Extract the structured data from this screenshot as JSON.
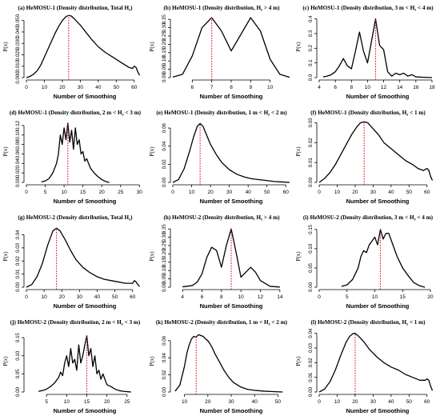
{
  "colors": {
    "curve": "#000000",
    "marker": "#e0141e"
  },
  "chart_data": [
    {
      "type": "line",
      "title": "(a) HeMOSU-1 (Density distribution, Total H",
      "title_sub": "s",
      "title_end": ")",
      "xlabel": "Number of Smoothing",
      "ylabel": "P(x)",
      "xlim": [
        0,
        65
      ],
      "ylim": [
        0,
        0.054
      ],
      "xticks": [
        0,
        10,
        20,
        30,
        40,
        50,
        60
      ],
      "yticks": [
        0.0,
        0.01,
        0.02,
        0.03,
        0.04,
        0.05
      ],
      "ytick_labels": [
        "0.000",
        "0.010",
        "0.020",
        "0.030",
        "0.040",
        "0.050"
      ],
      "marker_x": 23.5,
      "x": [
        0,
        2,
        4,
        6,
        8,
        10,
        12,
        14,
        16,
        18,
        20,
        22,
        23.5,
        25,
        27,
        30,
        33,
        36,
        40,
        44,
        48,
        52,
        55,
        57,
        59,
        60,
        61,
        62,
        63
      ],
      "y": [
        0,
        0.001,
        0.003,
        0.006,
        0.011,
        0.018,
        0.025,
        0.032,
        0.039,
        0.045,
        0.05,
        0.0535,
        0.0545,
        0.054,
        0.051,
        0.046,
        0.04,
        0.034,
        0.027,
        0.022,
        0.018,
        0.014,
        0.011,
        0.009,
        0.008,
        0.01,
        0.009,
        0.005,
        0.002
      ]
    },
    {
      "type": "line",
      "title": "(b) HeMOSU-1 (Density distribution, H",
      "title_sub": "s",
      "title_end": " > 4 m)",
      "xlabel": "Number of Smoothing",
      "ylabel": "P(x)",
      "xlim": [
        5,
        11
      ],
      "ylim": [
        0,
        0.37
      ],
      "xticks": [
        6,
        7,
        8,
        9,
        10
      ],
      "yticks": [
        0.0,
        0.05,
        0.1,
        0.15,
        0.2,
        0.25,
        0.3,
        0.35
      ],
      "ytick_labels": [
        "0.00",
        "0.05",
        "0.10",
        "0.15",
        "0.20",
        "0.25",
        "0.30",
        "0.35"
      ],
      "marker_x": 7,
      "x": [
        5,
        5.5,
        6,
        6.5,
        7,
        7.5,
        8,
        8.5,
        9,
        9.5,
        10,
        10.5,
        11
      ],
      "y": [
        0.003,
        0.02,
        0.13,
        0.3,
        0.36,
        0.28,
        0.16,
        0.26,
        0.36,
        0.28,
        0.11,
        0.02,
        0.002
      ]
    },
    {
      "type": "line",
      "title": "(c) HeMOSU-1 (Density distribution, 3 m < H",
      "title_sub": "s",
      "title_end": " < 4 m)",
      "xlabel": "Number of Smoothing",
      "ylabel": "P(x)",
      "xlim": [
        4,
        18.5
      ],
      "ylim": [
        0,
        0.42
      ],
      "xticks": [
        4,
        6,
        8,
        10,
        12,
        14,
        16,
        18
      ],
      "yticks": [
        0.0,
        0.1,
        0.2,
        0.3,
        0.4
      ],
      "ytick_labels": [
        "0.0",
        "0.1",
        "0.2",
        "0.3",
        "0.4"
      ],
      "marker_x": 11,
      "x": [
        4.5,
        5,
        5.5,
        6,
        6.5,
        7,
        7.5,
        8,
        8.5,
        9,
        9.5,
        10,
        10.5,
        11,
        11.5,
        12,
        12.5,
        13,
        13.5,
        14,
        14.5,
        15,
        15.5,
        16,
        17,
        18
      ],
      "y": [
        0.005,
        0.01,
        0.02,
        0.04,
        0.08,
        0.13,
        0.08,
        0.06,
        0.18,
        0.31,
        0.18,
        0.1,
        0.25,
        0.4,
        0.22,
        0.19,
        0.04,
        0.01,
        0.03,
        0.02,
        0.03,
        0.01,
        0.02,
        0.005,
        0.002,
        0.0
      ]
    },
    {
      "type": "line",
      "title": "(d) HeMOSU-1 (Density distribution, 2 m < H",
      "title_sub": "s",
      "title_end": " < 3 m)",
      "xlabel": "Number of Smoothing",
      "ylabel": "P(x)",
      "xlim": [
        0,
        31
      ],
      "ylim": [
        0,
        0.13
      ],
      "xticks": [
        0,
        5,
        10,
        15,
        20,
        25,
        30
      ],
      "yticks": [
        0.0,
        0.02,
        0.04,
        0.06,
        0.08,
        0.1,
        0.12
      ],
      "ytick_labels": [
        "0.00",
        "0.02",
        "0.04",
        "0.06",
        "0.08",
        "0.10",
        "0.12"
      ],
      "marker_x": 11,
      "x": [
        4,
        5,
        6,
        7,
        8,
        8.5,
        9,
        9.5,
        10,
        10.5,
        11,
        11.5,
        12,
        12.5,
        13,
        13.5,
        14,
        14.5,
        15,
        15.5,
        16,
        17,
        18,
        19,
        20,
        21,
        22
      ],
      "y": [
        0.001,
        0.003,
        0.008,
        0.02,
        0.04,
        0.06,
        0.1,
        0.08,
        0.115,
        0.09,
        0.125,
        0.085,
        0.11,
        0.07,
        0.115,
        0.08,
        0.09,
        0.06,
        0.065,
        0.045,
        0.05,
        0.03,
        0.02,
        0.012,
        0.006,
        0.002,
        0.0
      ]
    },
    {
      "type": "line",
      "title": "(e) HeMOSU-1 (Density distribution, 1 m < H",
      "title_sub": "s",
      "title_end": " < 2 m)",
      "xlabel": "Number of Smoothing",
      "ylabel": "P(x)",
      "xlim": [
        0,
        62
      ],
      "ylim": [
        0,
        0.068
      ],
      "xticks": [
        0,
        10,
        20,
        30,
        40,
        50,
        60
      ],
      "yticks": [
        0.0,
        0.02,
        0.04,
        0.06
      ],
      "ytick_labels": [
        "0.00",
        "0.02",
        "0.04",
        "0.06"
      ],
      "marker_x": 14.5,
      "x": [
        0,
        3,
        6,
        9,
        11,
        13,
        14.5,
        16,
        18,
        20,
        23,
        26,
        30,
        34,
        38,
        42,
        46,
        50,
        54,
        58,
        62
      ],
      "y": [
        0,
        0.003,
        0.015,
        0.035,
        0.05,
        0.062,
        0.065,
        0.062,
        0.052,
        0.042,
        0.031,
        0.022,
        0.014,
        0.009,
        0.006,
        0.004,
        0.003,
        0.002,
        0.001,
        0.0005,
        0.0
      ]
    },
    {
      "type": "line",
      "title": "(f) HeMOSU-1 (Density distribution, H",
      "title_sub": "s",
      "title_end": " < 1 m)",
      "xlabel": "Number of Smoothing",
      "ylabel": "P(x)",
      "xlim": [
        0,
        65
      ],
      "ylim": [
        0,
        0.031
      ],
      "xticks": [
        0,
        10,
        20,
        30,
        40,
        50,
        60
      ],
      "yticks": [
        0.0,
        0.01,
        0.02,
        0.03
      ],
      "ytick_labels": [
        "0.00",
        "0.01",
        "0.02",
        "0.03"
      ],
      "marker_x": 25,
      "x": [
        0,
        3,
        6,
        9,
        12,
        15,
        18,
        21,
        23,
        25,
        27,
        30,
        33,
        36,
        40,
        44,
        48,
        52,
        55,
        58,
        60,
        61,
        62,
        63
      ],
      "y": [
        0,
        0.002,
        0.005,
        0.009,
        0.014,
        0.019,
        0.024,
        0.028,
        0.03,
        0.0305,
        0.03,
        0.027,
        0.024,
        0.02,
        0.017,
        0.014,
        0.011,
        0.009,
        0.007,
        0.006,
        0.007,
        0.006,
        0.003,
        0.001
      ]
    },
    {
      "type": "line",
      "title": "(g) HeMOSU-2 (Density distribution, Total H",
      "title_sub": "s",
      "title_end": ")",
      "xlabel": "Number of Smoothing",
      "ylabel": "P(x)",
      "xlim": [
        0,
        66
      ],
      "ylim": [
        0,
        0.047
      ],
      "xticks": [
        0,
        10,
        20,
        30,
        40,
        50,
        60
      ],
      "yticks": [
        0.0,
        0.01,
        0.02,
        0.03,
        0.04
      ],
      "ytick_labels": [
        "0.00",
        "0.01",
        "0.02",
        "0.03",
        "0.04"
      ],
      "marker_x": 17,
      "x": [
        0,
        3,
        6,
        9,
        12,
        15,
        17,
        19,
        22,
        25,
        28,
        32,
        36,
        40,
        44,
        48,
        52,
        56,
        60,
        61,
        62,
        63,
        64
      ],
      "y": [
        0,
        0.002,
        0.008,
        0.018,
        0.032,
        0.043,
        0.045,
        0.043,
        0.036,
        0.028,
        0.021,
        0.015,
        0.011,
        0.008,
        0.006,
        0.005,
        0.004,
        0.003,
        0.003,
        0.005,
        0.004,
        0.002,
        0.0005
      ]
    },
    {
      "type": "line",
      "title": "(h) HeMOSU-2 (Density distribution, H",
      "title_sub": "s",
      "title_end": " > 4 m)",
      "xlabel": "Number of Smoothing",
      "ylabel": "P(x)",
      "xlim": [
        3,
        15
      ],
      "ylim": [
        0,
        0.37
      ],
      "xticks": [
        4,
        6,
        8,
        10,
        12,
        14
      ],
      "yticks": [
        0.0,
        0.05,
        0.1,
        0.15,
        0.2,
        0.25,
        0.3,
        0.35
      ],
      "ytick_labels": [
        "0.00",
        "0.05",
        "0.10",
        "0.15",
        "0.20",
        "0.25",
        "0.30",
        "0.35"
      ],
      "marker_x": 9,
      "x": [
        4,
        5,
        5.5,
        6,
        6.5,
        7,
        7.5,
        8,
        8.5,
        9,
        9.5,
        10,
        10.5,
        11,
        11.5,
        12,
        13,
        14
      ],
      "y": [
        0.002,
        0.01,
        0.03,
        0.08,
        0.18,
        0.24,
        0.22,
        0.12,
        0.25,
        0.35,
        0.21,
        0.06,
        0.09,
        0.12,
        0.09,
        0.04,
        0.005,
        0.001
      ]
    },
    {
      "type": "line",
      "title": "(i) HeMOSU-2 (Density distribution, 3 m < H",
      "title_sub": "s",
      "title_end": " < 4 m)",
      "xlabel": "Number of Smoothing",
      "ylabel": "P(x)",
      "xlim": [
        0,
        21
      ],
      "ylim": [
        0,
        0.16
      ],
      "xticks": [
        0,
        5,
        10,
        15,
        20
      ],
      "yticks": [
        0.0,
        0.05,
        0.1,
        0.15
      ],
      "ytick_labels": [
        "0.00",
        "0.05",
        "0.10",
        "0.15"
      ],
      "marker_x": 11,
      "x": [
        4,
        5,
        6,
        7,
        7.5,
        8,
        8.5,
        9,
        9.5,
        10,
        10.5,
        11,
        11.5,
        12,
        12.5,
        13,
        13.5,
        14,
        15,
        16,
        17,
        18,
        19
      ],
      "y": [
        0.002,
        0.006,
        0.02,
        0.05,
        0.08,
        0.095,
        0.09,
        0.11,
        0.12,
        0.13,
        0.11,
        0.15,
        0.125,
        0.14,
        0.14,
        0.12,
        0.1,
        0.08,
        0.05,
        0.03,
        0.012,
        0.004,
        0.0
      ]
    },
    {
      "type": "line",
      "title": "(j) HeMOSU-2 (Density distribution, 2 m < H",
      "title_sub": "s",
      "title_end": " < 3 m)",
      "xlabel": "Number of Smoothing",
      "ylabel": "P(x)",
      "xlim": [
        0,
        29
      ],
      "ylim": [
        0,
        0.17
      ],
      "xticks": [
        5,
        10,
        15,
        20,
        25
      ],
      "yticks": [
        0.0,
        0.05,
        0.1,
        0.15
      ],
      "ytick_labels": [
        "0.00",
        "0.05",
        "0.10",
        "0.15"
      ],
      "marker_x": 15,
      "x": [
        3,
        4,
        5,
        6,
        7,
        8,
        8.5,
        9,
        9.5,
        10,
        10.5,
        11,
        11.5,
        12,
        12.5,
        13,
        13.5,
        14,
        14.5,
        15,
        15.5,
        16,
        16.5,
        17,
        17.5,
        18,
        18.5,
        19,
        20,
        21,
        22,
        23,
        24,
        25,
        26
      ],
      "y": [
        0.002,
        0.004,
        0.008,
        0.015,
        0.025,
        0.04,
        0.055,
        0.045,
        0.08,
        0.1,
        0.07,
        0.12,
        0.08,
        0.09,
        0.06,
        0.13,
        0.08,
        0.1,
        0.13,
        0.155,
        0.1,
        0.12,
        0.07,
        0.1,
        0.05,
        0.06,
        0.035,
        0.05,
        0.02,
        0.015,
        0.008,
        0.004,
        0.002,
        0.001,
        0.0
      ]
    },
    {
      "type": "line",
      "title": "(k) HeMOSU-2 (Density distribution, 1 m < H",
      "title_sub": "s",
      "title_end": " < 2 m)",
      "xlabel": "Number of Smoothing",
      "ylabel": "P(x)",
      "xlim": [
        5,
        55
      ],
      "ylim": [
        0,
        0.072
      ],
      "xticks": [
        10,
        20,
        30,
        40,
        50
      ],
      "yticks": [
        0.0,
        0.02,
        0.04,
        0.06
      ],
      "ytick_labels": [
        "0.00",
        "0.02",
        "0.04",
        "0.06"
      ],
      "marker_x": 15,
      "x": [
        6,
        8,
        10,
        11,
        12,
        13,
        14,
        15,
        16,
        17,
        18,
        19,
        20,
        21,
        22,
        23,
        25,
        27,
        29,
        31,
        34,
        37,
        40,
        44,
        48,
        52
      ],
      "y": [
        0.001,
        0.008,
        0.03,
        0.045,
        0.055,
        0.062,
        0.065,
        0.064,
        0.067,
        0.066,
        0.065,
        0.062,
        0.06,
        0.056,
        0.051,
        0.045,
        0.035,
        0.025,
        0.017,
        0.011,
        0.006,
        0.003,
        0.002,
        0.001,
        0.0005,
        0.0
      ]
    },
    {
      "type": "line",
      "title": "(l) HeMOSU-2 (Density distribution, H",
      "title_sub": "s",
      "title_end": " < 1 m)",
      "xlabel": "Number of Smoothing",
      "ylabel": "P(x)",
      "xlim": [
        0,
        65
      ],
      "ylim": [
        0,
        0.042
      ],
      "xticks": [
        0,
        10,
        20,
        30,
        40,
        50,
        60
      ],
      "yticks": [
        0.0,
        0.01,
        0.02,
        0.03,
        0.04
      ],
      "ytick_labels": [
        "0.00",
        "0.01",
        "0.02",
        "0.03",
        "0.04"
      ],
      "marker_x": 20,
      "x": [
        0,
        3,
        6,
        9,
        12,
        15,
        17,
        19,
        20,
        22,
        25,
        28,
        32,
        36,
        40,
        44,
        48,
        52,
        56,
        59,
        60,
        61,
        62,
        63
      ],
      "y": [
        0,
        0.002,
        0.007,
        0.015,
        0.025,
        0.034,
        0.038,
        0.04,
        0.04,
        0.038,
        0.034,
        0.029,
        0.024,
        0.02,
        0.017,
        0.015,
        0.012,
        0.01,
        0.008,
        0.008,
        0.009,
        0.008,
        0.004,
        0.001
      ]
    }
  ]
}
